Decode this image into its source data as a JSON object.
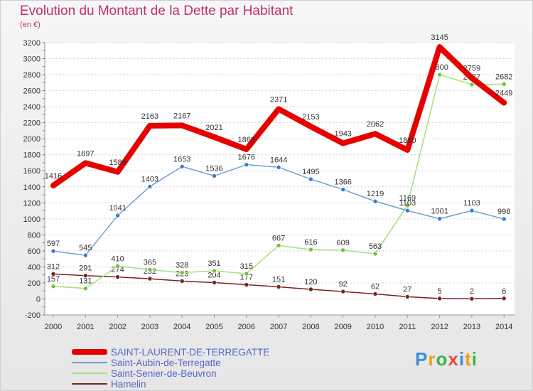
{
  "header": {
    "title": "Evolution du Montant de la Dette par Habitant",
    "unit": "(en €)"
  },
  "colors": {
    "title": "#c0306e",
    "grid": "#cccccc",
    "legend_text": "#5566cc"
  },
  "chart_data": {
    "type": "line",
    "title": "Evolution du Montant de la Dette par Habitant",
    "ylabel": "(en €)",
    "xlabel": "",
    "ylim": [
      -200,
      3200
    ],
    "y_ticks": [
      -200,
      0,
      200,
      400,
      600,
      800,
      1000,
      1200,
      1400,
      1600,
      1800,
      2000,
      2200,
      2400,
      2600,
      2800,
      3000,
      3200
    ],
    "x": [
      "2000",
      "2001",
      "2002",
      "2003",
      "2004",
      "2005",
      "2006",
      "2007",
      "2008",
      "2009",
      "2010",
      "2011",
      "2012",
      "2013",
      "2014"
    ],
    "grid": "horizontal dashed",
    "legend_position": "bottom-left",
    "series": [
      {
        "name": "SAINT-LAURENT-DE-TERREGATTE",
        "color": "#e60000",
        "width": 8,
        "values": [
          1416,
          1697,
          1586,
          2163,
          2167,
          2021,
          1868,
          2371,
          2153,
          1943,
          2062,
          1860,
          3145,
          2759,
          2449
        ]
      },
      {
        "name": "Saint-Aubin-de-Terregatte",
        "color": "#6f9fd8",
        "width": 1.5,
        "marker": "#3a7cc7",
        "values": [
          597,
          545,
          1041,
          1403,
          1653,
          1536,
          1676,
          1644,
          1495,
          1366,
          1219,
          1103,
          1001,
          1103,
          998
        ]
      },
      {
        "name": "Saint-Senier-de-Beuvron",
        "color": "#a6e07a",
        "width": 1.5,
        "marker": "#6cc23a",
        "values": [
          157,
          131,
          410,
          365,
          328,
          351,
          315,
          667,
          616,
          609,
          563,
          1169,
          2800,
          2677,
          2682
        ]
      },
      {
        "name": "Hamelin",
        "color": "#7a2323",
        "width": 1.5,
        "marker": "#7a2323",
        "values": [
          312,
          291,
          274,
          252,
          223,
          204,
          177,
          151,
          120,
          92,
          62,
          27,
          5,
          2,
          6
        ]
      }
    ]
  },
  "logo": {
    "text": "Proxiti",
    "letters": [
      "P",
      "r",
      "o",
      "x",
      "i",
      "t",
      "i"
    ],
    "letter_colors": [
      "#3b8ddd",
      "#f39c12",
      "#39b54a",
      "#e74c3c",
      "#3b8ddd",
      "#f39c12",
      "#39b54a"
    ]
  }
}
